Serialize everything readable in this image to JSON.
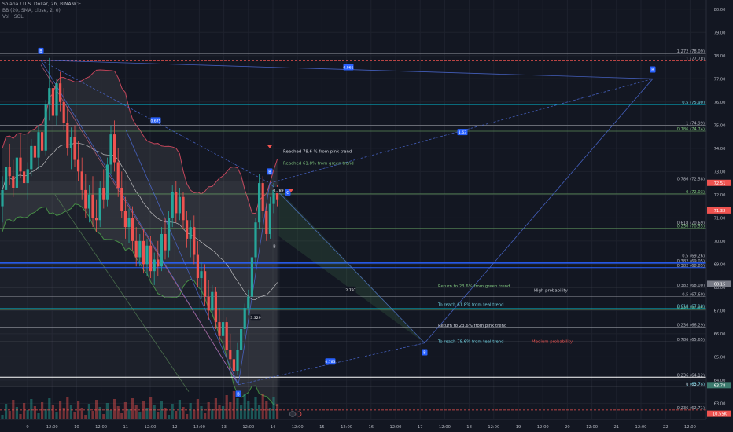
{
  "header": {
    "title": "Solana / U.S. Dollar, 2h, BINANCE",
    "indicator_bb": "BB (20, SMA, close, 2, 0)",
    "indicator_vol": "Vol · SOL"
  },
  "colors": {
    "background": "#131722",
    "grid": "#1e222d",
    "up": "#26a69a",
    "down": "#ef5350",
    "accent_blue": "#2962ff",
    "cyan": "#00bcd4",
    "pattern_line": "#4c6bd6",
    "pink_line": "#d76b8c",
    "green_line": "#5b8c5a",
    "bb_upper": "#c2455a",
    "bb_lower": "#3f8a3f",
    "bb_fill": "#808080",
    "sma": "#e0e0e0",
    "label_green": "#7ec27c",
    "label_cyan": "#6fd0e0",
    "label_white": "#d1d4dc",
    "label_red": "#ef5350",
    "badge_blue": "#2962ff"
  },
  "chart_data": {
    "type": "candlestick",
    "symbol": "Solana / U.S. Dollar",
    "timeframe": "2h",
    "exchange": "BINANCE",
    "x_axis_labels": [
      "9",
      "12:00",
      "10",
      "12:00",
      "11",
      "12:00",
      "12",
      "12:00",
      "13",
      "12:00",
      "14",
      "12:00",
      "15",
      "12:00",
      "16",
      "12:00",
      "17",
      "12:00",
      "18",
      "12:00",
      "19",
      "12:00",
      "20",
      "12:00",
      "21",
      "12:00",
      "22",
      "12:00"
    ],
    "y_ticks": [
      63.0,
      64.0,
      65.0,
      66.0,
      67.0,
      68.0,
      69.0,
      70.0,
      71.0,
      72.0,
      73.0,
      74.0,
      75.0,
      76.0,
      77.0,
      78.0,
      79.0,
      80.0
    ],
    "ylim": [
      62.3,
      80.4
    ],
    "candles": [
      {
        "o": 71.5,
        "h": 72.8,
        "l": 70.8,
        "c": 72.2
      },
      {
        "o": 72.2,
        "h": 73.6,
        "l": 71.8,
        "c": 73.2
      },
      {
        "o": 73.2,
        "h": 74.2,
        "l": 72.4,
        "c": 72.8
      },
      {
        "o": 72.8,
        "h": 73.5,
        "l": 71.9,
        "c": 72.3
      },
      {
        "o": 72.3,
        "h": 73.9,
        "l": 72.0,
        "c": 73.6
      },
      {
        "o": 73.6,
        "h": 74.6,
        "l": 72.7,
        "c": 73.0
      },
      {
        "o": 73.0,
        "h": 74.0,
        "l": 72.1,
        "c": 72.5
      },
      {
        "o": 72.5,
        "h": 73.4,
        "l": 71.8,
        "c": 73.1
      },
      {
        "o": 73.1,
        "h": 74.4,
        "l": 72.8,
        "c": 74.1
      },
      {
        "o": 74.1,
        "h": 75.1,
        "l": 73.2,
        "c": 73.6
      },
      {
        "o": 73.6,
        "h": 75.0,
        "l": 73.1,
        "c": 74.7
      },
      {
        "o": 74.7,
        "h": 75.4,
        "l": 73.6,
        "c": 73.9
      },
      {
        "o": 73.9,
        "h": 76.1,
        "l": 73.7,
        "c": 75.9
      },
      {
        "o": 75.9,
        "h": 77.9,
        "l": 75.2,
        "c": 76.6
      },
      {
        "o": 76.6,
        "h": 77.4,
        "l": 75.0,
        "c": 75.4
      },
      {
        "o": 75.4,
        "h": 77.0,
        "l": 75.0,
        "c": 76.8
      },
      {
        "o": 76.8,
        "h": 77.3,
        "l": 75.6,
        "c": 76.0
      },
      {
        "o": 76.0,
        "h": 76.6,
        "l": 74.8,
        "c": 75.1
      },
      {
        "o": 75.1,
        "h": 75.8,
        "l": 73.7,
        "c": 74.0
      },
      {
        "o": 74.0,
        "h": 74.9,
        "l": 73.1,
        "c": 74.5
      },
      {
        "o": 74.5,
        "h": 75.0,
        "l": 73.2,
        "c": 73.5
      },
      {
        "o": 73.5,
        "h": 74.3,
        "l": 72.6,
        "c": 73.0
      },
      {
        "o": 73.0,
        "h": 73.6,
        "l": 71.8,
        "c": 72.2
      },
      {
        "o": 72.2,
        "h": 72.9,
        "l": 71.0,
        "c": 71.4
      },
      {
        "o": 71.4,
        "h": 72.4,
        "l": 70.8,
        "c": 72.0
      },
      {
        "o": 72.0,
        "h": 72.8,
        "l": 70.6,
        "c": 71.0
      },
      {
        "o": 71.0,
        "h": 71.8,
        "l": 70.4,
        "c": 70.9
      },
      {
        "o": 70.9,
        "h": 72.6,
        "l": 70.6,
        "c": 72.3
      },
      {
        "o": 72.3,
        "h": 73.1,
        "l": 71.4,
        "c": 71.8
      },
      {
        "o": 71.8,
        "h": 73.6,
        "l": 71.5,
        "c": 73.3
      },
      {
        "o": 73.3,
        "h": 75.0,
        "l": 72.9,
        "c": 74.6
      },
      {
        "o": 74.6,
        "h": 75.2,
        "l": 73.0,
        "c": 73.4
      },
      {
        "o": 73.4,
        "h": 74.0,
        "l": 71.9,
        "c": 72.3
      },
      {
        "o": 72.3,
        "h": 73.0,
        "l": 71.0,
        "c": 71.3
      },
      {
        "o": 71.3,
        "h": 71.9,
        "l": 70.1,
        "c": 70.6
      },
      {
        "o": 70.6,
        "h": 71.4,
        "l": 69.9,
        "c": 71.0
      },
      {
        "o": 71.0,
        "h": 71.5,
        "l": 69.6,
        "c": 70.0
      },
      {
        "o": 70.0,
        "h": 70.6,
        "l": 68.9,
        "c": 69.3
      },
      {
        "o": 69.3,
        "h": 70.3,
        "l": 68.9,
        "c": 70.0
      },
      {
        "o": 70.0,
        "h": 70.5,
        "l": 68.6,
        "c": 69.0
      },
      {
        "o": 69.0,
        "h": 70.1,
        "l": 68.5,
        "c": 69.8
      },
      {
        "o": 69.8,
        "h": 70.2,
        "l": 68.4,
        "c": 68.7
      },
      {
        "o": 68.7,
        "h": 69.5,
        "l": 68.1,
        "c": 69.2
      },
      {
        "o": 69.2,
        "h": 70.0,
        "l": 68.5,
        "c": 68.9
      },
      {
        "o": 68.9,
        "h": 70.6,
        "l": 68.7,
        "c": 70.3
      },
      {
        "o": 70.3,
        "h": 71.0,
        "l": 69.2,
        "c": 69.6
      },
      {
        "o": 69.6,
        "h": 71.3,
        "l": 69.3,
        "c": 71.0
      },
      {
        "o": 71.0,
        "h": 72.4,
        "l": 70.6,
        "c": 72.1
      },
      {
        "o": 72.1,
        "h": 72.6,
        "l": 70.8,
        "c": 71.2
      },
      {
        "o": 71.2,
        "h": 72.3,
        "l": 70.9,
        "c": 71.9
      },
      {
        "o": 71.9,
        "h": 72.1,
        "l": 70.5,
        "c": 70.9
      },
      {
        "o": 70.9,
        "h": 71.3,
        "l": 69.7,
        "c": 70.1
      },
      {
        "o": 70.1,
        "h": 70.9,
        "l": 69.3,
        "c": 70.6
      },
      {
        "o": 70.6,
        "h": 71.1,
        "l": 69.0,
        "c": 69.4
      },
      {
        "o": 69.4,
        "h": 70.0,
        "l": 68.0,
        "c": 68.4
      },
      {
        "o": 68.4,
        "h": 69.1,
        "l": 67.5,
        "c": 68.7
      },
      {
        "o": 68.7,
        "h": 69.0,
        "l": 67.2,
        "c": 67.6
      },
      {
        "o": 67.6,
        "h": 68.3,
        "l": 66.6,
        "c": 67.0
      },
      {
        "o": 67.0,
        "h": 68.1,
        "l": 66.7,
        "c": 67.8
      },
      {
        "o": 67.8,
        "h": 68.0,
        "l": 66.2,
        "c": 66.5
      },
      {
        "o": 66.5,
        "h": 67.1,
        "l": 65.6,
        "c": 65.9
      },
      {
        "o": 65.9,
        "h": 66.8,
        "l": 65.5,
        "c": 66.5
      },
      {
        "o": 66.5,
        "h": 66.7,
        "l": 65.0,
        "c": 65.3
      },
      {
        "o": 65.3,
        "h": 66.0,
        "l": 64.5,
        "c": 64.9
      },
      {
        "o": 64.9,
        "h": 65.5,
        "l": 63.8,
        "c": 64.4
      },
      {
        "o": 64.4,
        "h": 65.6,
        "l": 64.2,
        "c": 65.3
      },
      {
        "o": 65.3,
        "h": 66.4,
        "l": 65.0,
        "c": 66.2
      },
      {
        "o": 66.2,
        "h": 67.3,
        "l": 65.9,
        "c": 67.1
      },
      {
        "o": 67.1,
        "h": 67.9,
        "l": 66.8,
        "c": 67.6
      },
      {
        "o": 67.6,
        "h": 69.6,
        "l": 67.4,
        "c": 69.3
      },
      {
        "o": 69.3,
        "h": 71.0,
        "l": 68.9,
        "c": 70.8
      },
      {
        "o": 70.8,
        "h": 72.9,
        "l": 70.5,
        "c": 72.5
      },
      {
        "o": 72.5,
        "h": 72.8,
        "l": 71.0,
        "c": 71.3
      },
      {
        "o": 71.3,
        "h": 71.6,
        "l": 70.0,
        "c": 70.3
      },
      {
        "o": 70.3,
        "h": 71.9,
        "l": 70.1,
        "c": 71.6
      },
      {
        "o": 71.6,
        "h": 72.5,
        "l": 71.2,
        "c": 72.2
      },
      {
        "o": 72.2,
        "h": 72.4,
        "l": 71.5,
        "c": 71.8
      }
    ],
    "price_levels_right": [
      {
        "text": "1.272 (78.09)",
        "price": 78.09
      },
      {
        "text": "1 (77.78)",
        "price": 77.78
      },
      {
        "text": "0.5 (75.90)",
        "price": 75.9
      },
      {
        "text": "1 (74.99)",
        "price": 74.99
      },
      {
        "text": "0.786 (74.74)",
        "price": 74.74
      },
      {
        "text": "0.786 (72.58)",
        "price": 72.58
      },
      {
        "text": "0 (72.03)",
        "price": 72.03
      },
      {
        "text": "0.618 (70.69)",
        "price": 70.69
      },
      {
        "text": "0.236 (70.55)",
        "price": 70.55
      },
      {
        "text": "0.5 (69.26)",
        "price": 69.26
      },
      {
        "text": "0.382 (69.05)",
        "price": 69.05
      },
      {
        "text": "0.382 (68.85)",
        "price": 68.85
      },
      {
        "text": "0.382 (68.00)",
        "price": 68.0
      },
      {
        "text": "0.5 (67.60)",
        "price": 67.6
      },
      {
        "text": "0.236 (67.04)",
        "price": 67.04
      },
      {
        "text": "0.618 (67.10)",
        "price": 67.1
      },
      {
        "text": "0.236 (66.29)",
        "price": 66.29
      },
      {
        "text": "0.786 (65.65)",
        "price": 65.65
      },
      {
        "text": "0.236 (64.12)",
        "price": 64.12
      },
      {
        "text": "0 (63.73)",
        "price": 63.73
      },
      {
        "text": "1 (63.74)",
        "price": 63.74
      },
      {
        "text": "0.236 (62.71)",
        "price": 62.71
      }
    ],
    "price_badges": [
      {
        "text": "72.51",
        "price": 72.51,
        "color": "#ef5350"
      },
      {
        "text": "71.32",
        "price": 71.32,
        "color": "#ef5350"
      },
      {
        "text": "68.15",
        "price": 68.15,
        "color": "#787b86"
      },
      {
        "text": "63.78",
        "price": 63.78,
        "color": "#3c7a6e"
      },
      {
        "text": "10.55K",
        "price": 62.55,
        "color": "#ef5350"
      }
    ],
    "annotations": [
      {
        "text": "Reached 78.6 % from pink trend",
        "color": "#d1d4dc"
      },
      {
        "text": "Reached 61.8% from green trend",
        "color": "#7ec27c"
      },
      {
        "text": "Return to 23.6% from green trend",
        "color": "#7ec27c"
      },
      {
        "text": "High probability",
        "color": "#d1d4dc"
      },
      {
        "text": "To reach 61.8% from teal  trend",
        "color": "#6fd0e0"
      },
      {
        "text": "Return to 23.6% from pink trend",
        "color": "#d1d4dc"
      },
      {
        "text": "To reach 78.6% from teal  trend",
        "color": "#6fd0e0"
      },
      {
        "text": "Medium probability",
        "color": "#ef5350"
      }
    ],
    "pattern_ratios": [
      "0.961",
      "0.675",
      "1.63",
      "0.789",
      "2.797",
      "3.329",
      "0.783"
    ],
    "pattern_points": [
      "B",
      "B",
      "B",
      "B",
      "C",
      "B"
    ]
  }
}
